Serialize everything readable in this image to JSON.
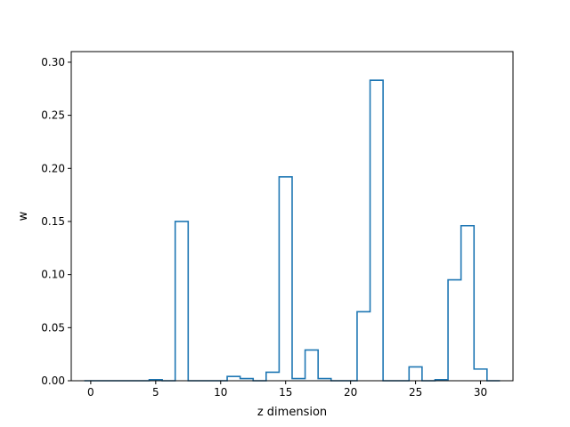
{
  "chart_data": {
    "type": "bar",
    "style": "step-outline histogram",
    "xlabel": "z dimension",
    "ylabel": "w",
    "xlim": [
      -1.5,
      32.5
    ],
    "ylim": [
      0,
      0.31
    ],
    "xticks": [
      0,
      5,
      10,
      15,
      20,
      25,
      30
    ],
    "xtick_labels": [
      "0",
      "5",
      "10",
      "15",
      "20",
      "25",
      "30"
    ],
    "yticks": [
      0.0,
      0.05,
      0.1,
      0.15,
      0.2,
      0.25,
      0.3
    ],
    "ytick_labels": [
      "0.00",
      "0.05",
      "0.10",
      "0.15",
      "0.20",
      "0.25",
      "0.30"
    ],
    "grid": false,
    "legend": "none",
    "color": "#1f77b4",
    "categories": [
      0,
      1,
      2,
      3,
      4,
      5,
      6,
      7,
      8,
      9,
      10,
      11,
      12,
      13,
      14,
      15,
      16,
      17,
      18,
      19,
      20,
      21,
      22,
      23,
      24,
      25,
      26,
      27,
      28,
      29,
      30,
      31
    ],
    "values": [
      0.0,
      0.0,
      0.0,
      0.0,
      0.0,
      0.001,
      0.0,
      0.15,
      0.0,
      0.0,
      0.0,
      0.004,
      0.002,
      0.0,
      0.008,
      0.192,
      0.002,
      0.029,
      0.002,
      0.0,
      0.0,
      0.065,
      0.283,
      0.0,
      0.0,
      0.013,
      0.0,
      0.001,
      0.095,
      0.146,
      0.011,
      0.0
    ]
  }
}
